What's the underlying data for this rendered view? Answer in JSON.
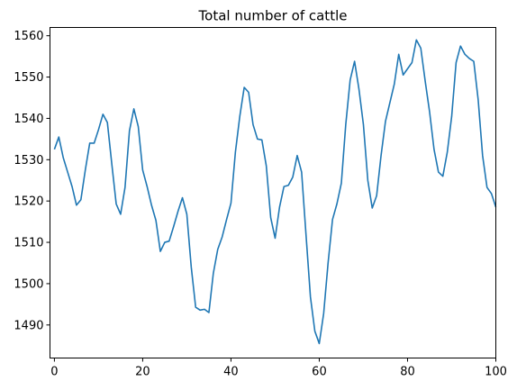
{
  "chart_data": {
    "type": "line",
    "title": "Total number of cattle",
    "xlabel": "",
    "ylabel": "",
    "xlim": [
      -1,
      100
    ],
    "ylim": [
      1482,
      1562
    ],
    "xticks": [
      0,
      20,
      40,
      60,
      80,
      100
    ],
    "yticks": [
      1490,
      1500,
      1510,
      1520,
      1530,
      1540,
      1550,
      1560
    ],
    "grid": false,
    "series_color": "#1f77b4",
    "series": [
      {
        "x": [
          0,
          1,
          2,
          3,
          4,
          5,
          6,
          7,
          8,
          9,
          10,
          11,
          12,
          13,
          14,
          15,
          16,
          17,
          18,
          19,
          20,
          21,
          22,
          23,
          24,
          25,
          26,
          27,
          28,
          29,
          30,
          31,
          32,
          33,
          34,
          35,
          36,
          37,
          38,
          39,
          40,
          41,
          42,
          43,
          44,
          45,
          46,
          47,
          48,
          49,
          50,
          51,
          52,
          53,
          54,
          55,
          56,
          57,
          58,
          59,
          60,
          61,
          62,
          63,
          64,
          65,
          66,
          67,
          68,
          69,
          70,
          71,
          72,
          73,
          74,
          75,
          76,
          77,
          78,
          79,
          80,
          81,
          82,
          83,
          84,
          85,
          86,
          87,
          88,
          89,
          90,
          91,
          92,
          93,
          94,
          95,
          96,
          97,
          98,
          99,
          100
        ],
        "y": [
          1532.5,
          1535.5,
          1530.5,
          1527,
          1523.5,
          1519,
          1520.3,
          1527.5,
          1534,
          1534,
          1537.3,
          1541,
          1539,
          1529,
          1519.3,
          1516.8,
          1523.3,
          1537,
          1542.3,
          1538,
          1527.5,
          1523.5,
          1519,
          1515.3,
          1507.8,
          1510,
          1510.3,
          1513.8,
          1517.5,
          1520.8,
          1516.8,
          1504,
          1494.3,
          1493.6,
          1493.8,
          1493,
          1502.5,
          1508.3,
          1511.3,
          1515.5,
          1519.5,
          1531.8,
          1540.5,
          1547.5,
          1546.3,
          1538.5,
          1535,
          1534.8,
          1528.5,
          1516,
          1511,
          1518.5,
          1523.5,
          1523.8,
          1525.8,
          1531,
          1527,
          1511.8,
          1496.8,
          1488.5,
          1485.5,
          1492.8,
          1505,
          1515.5,
          1519.3,
          1524.3,
          1538.5,
          1549.3,
          1553.8,
          1547,
          1538.5,
          1525,
          1518.3,
          1521.3,
          1531,
          1539.3,
          1543.8,
          1548.3,
          1555.5,
          1550.5,
          1552,
          1553.5,
          1559,
          1557,
          1549,
          1541.5,
          1532.5,
          1527,
          1526,
          1531.8,
          1540.5,
          1553.5,
          1557.5,
          1555.5,
          1554.5,
          1553.8,
          1544.5,
          1531,
          1523.3,
          1521.8,
          1518.5
        ]
      }
    ]
  }
}
